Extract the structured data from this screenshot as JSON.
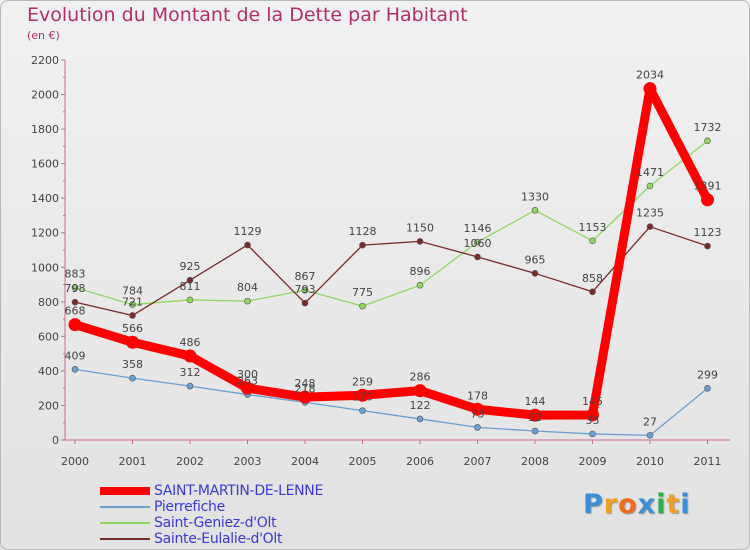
{
  "title": "Evolution du Montant de la Dette par Habitant",
  "subtitle": "(en €)",
  "logo_text": "Proxiti",
  "chart_data": {
    "type": "line",
    "x": [
      "2000",
      "2001",
      "2002",
      "2003",
      "2004",
      "2005",
      "2006",
      "2007",
      "2008",
      "2009",
      "2010",
      "2011"
    ],
    "ylim": [
      0,
      2200
    ],
    "yticks": [
      0,
      200,
      400,
      600,
      800,
      1000,
      1200,
      1400,
      1600,
      1800,
      2000,
      2200
    ],
    "grid": false,
    "legend_position": "bottom-left",
    "series": [
      {
        "name": "SAINT-MARTIN-DE-LENNE",
        "color": "#ff0000",
        "values": [
          668,
          566,
          486,
          300,
          248,
          259,
          286,
          178,
          144,
          145,
          2034,
          1391
        ]
      },
      {
        "name": "Pierrefiche",
        "color": "#6a9fd4",
        "values": [
          409,
          358,
          312,
          263,
          218,
          170,
          122,
          73,
          52,
          35,
          27,
          299
        ]
      },
      {
        "name": "Saint-Geniez-d'Olt",
        "color": "#8fd860",
        "values": [
          883,
          784,
          811,
          804,
          867,
          775,
          896,
          1146,
          1330,
          1153,
          1471,
          1732
        ]
      },
      {
        "name": "Sainte-Eulalie-d'Olt",
        "color": "#7a2a2a",
        "values": [
          798,
          721,
          925,
          1129,
          793,
          1128,
          1150,
          1060,
          965,
          858,
          1235,
          1123
        ]
      }
    ]
  }
}
